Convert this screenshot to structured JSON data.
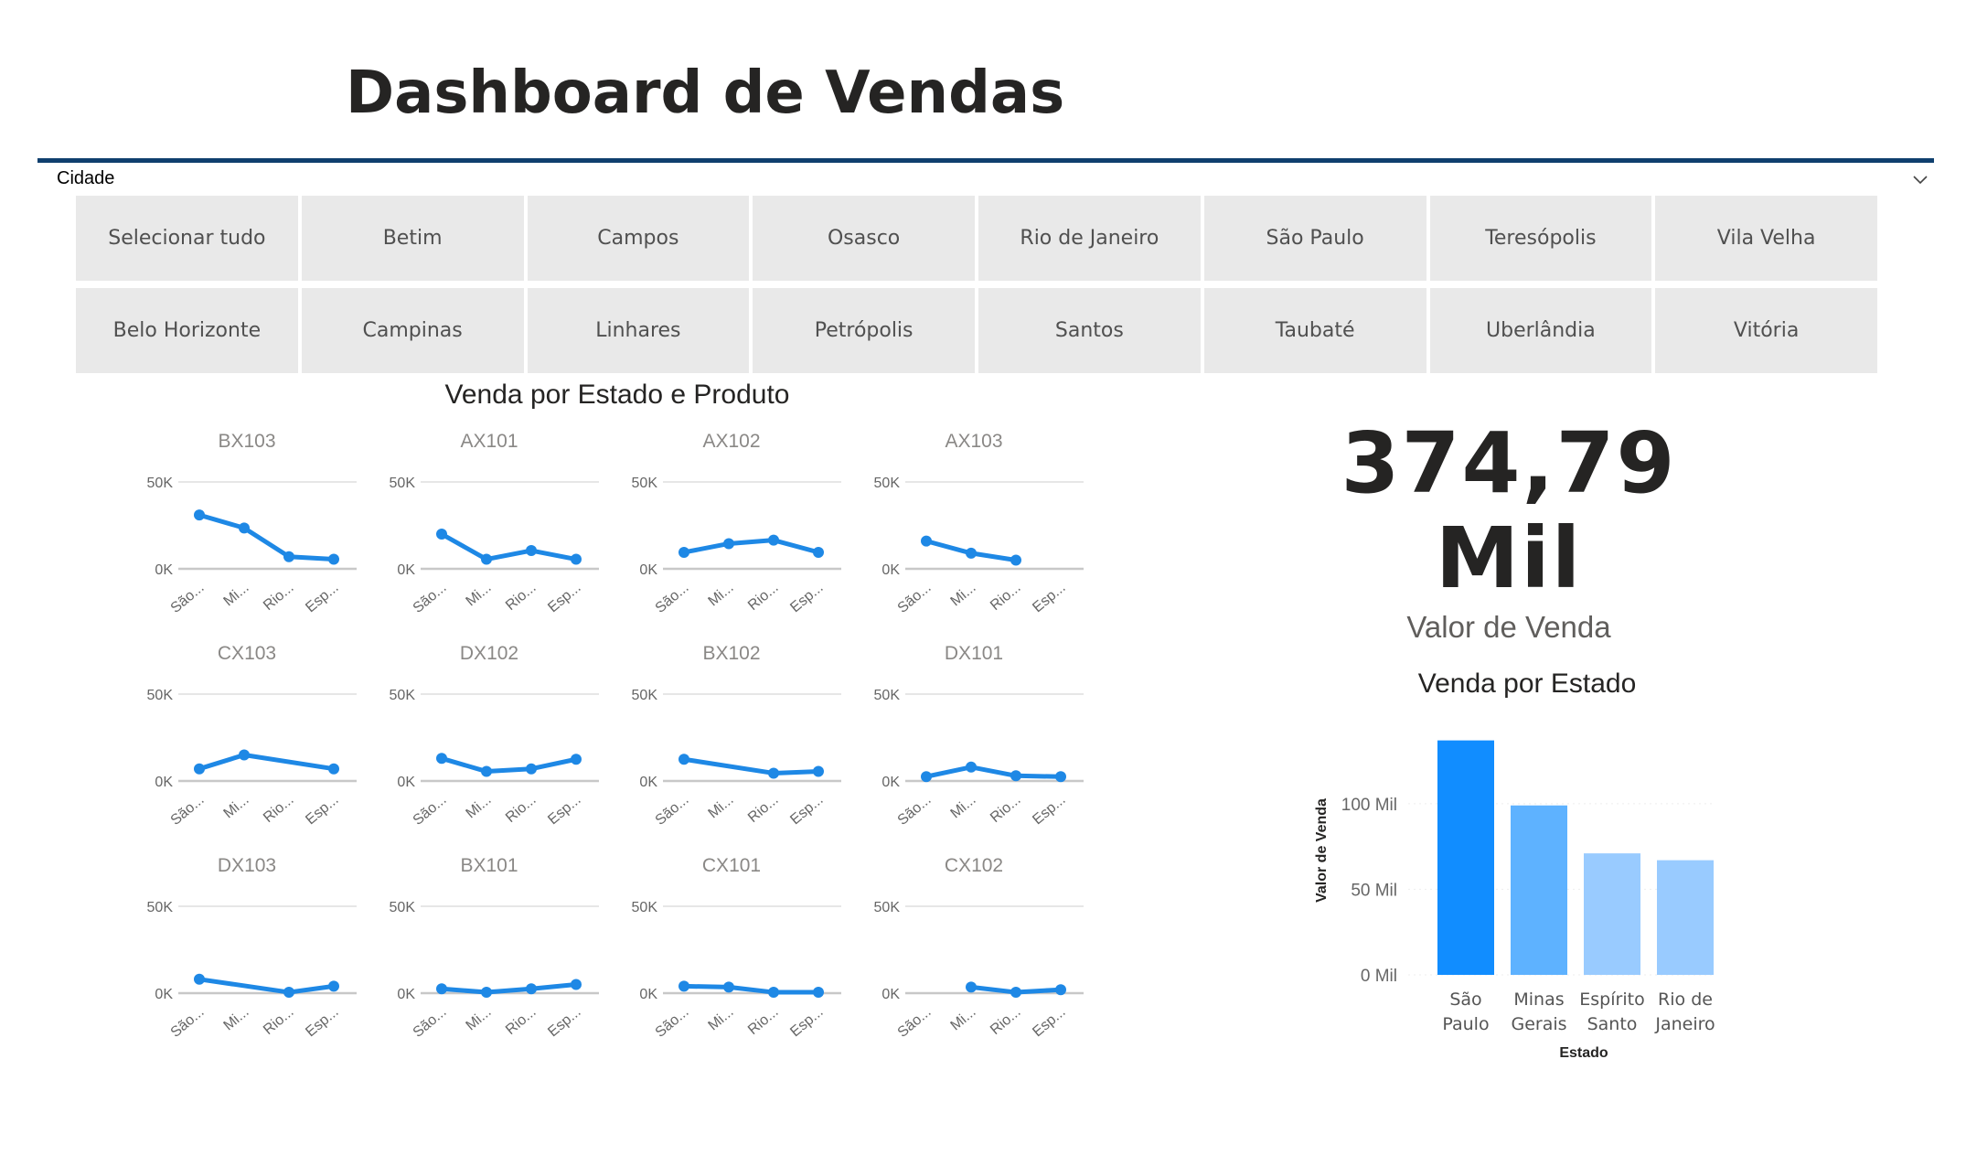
{
  "header": {
    "title": "Dashboard de Vendas"
  },
  "slicer": {
    "label": "Cidade",
    "buttons": [
      "Selecionar tudo",
      "Betim",
      "Campos",
      "Osasco",
      "Rio de Janeiro",
      "São Paulo",
      "Teresópolis",
      "Vila Velha",
      "Belo Horizonte",
      "Campinas",
      "Linhares",
      "Petrópolis",
      "Santos",
      "Taubaté",
      "Uberlândia",
      "Vitória"
    ]
  },
  "small_multiples": {
    "title": "Venda por Estado e Produto"
  },
  "kpi": {
    "value_line1": "374,79",
    "value_line2": "Mil",
    "label": "Valor de Venda"
  },
  "bar_chart_title": "Venda por Estado",
  "colors": {
    "accent": "#118dff",
    "line": "#1e88e5",
    "divider": "#0f3f6e",
    "button_bg": "#e9e9e9"
  },
  "chart_data": [
    {
      "type": "line",
      "title": "Venda por Estado e Produto",
      "categories": [
        "São...",
        "Mi...",
        "Rio...",
        "Esp..."
      ],
      "y_ticks": [
        "0K",
        "50K"
      ],
      "ylim": [
        0,
        50000
      ],
      "series": [
        {
          "name": "BX103",
          "values": [
            31000,
            23500,
            7000,
            5500
          ]
        },
        {
          "name": "AX101",
          "values": [
            20000,
            5500,
            10500,
            5500
          ]
        },
        {
          "name": "AX102",
          "values": [
            9500,
            14500,
            16500,
            9500
          ]
        },
        {
          "name": "AX103",
          "values": [
            16000,
            9000,
            5000,
            null
          ]
        },
        {
          "name": "CX103",
          "values": [
            7000,
            15000,
            null,
            7000
          ]
        },
        {
          "name": "DX102",
          "values": [
            13000,
            5500,
            7000,
            12500
          ]
        },
        {
          "name": "BX102",
          "values": [
            12500,
            null,
            4500,
            5500
          ]
        },
        {
          "name": "DX101",
          "values": [
            2500,
            8000,
            3000,
            2500
          ]
        },
        {
          "name": "DX103",
          "values": [
            8000,
            null,
            500,
            4000
          ]
        },
        {
          "name": "BX101",
          "values": [
            2500,
            500,
            2500,
            5000
          ]
        },
        {
          "name": "CX101",
          "values": [
            4000,
            3500,
            500,
            500
          ]
        },
        {
          "name": "CX102",
          "values": [
            null,
            3500,
            500,
            2000
          ]
        }
      ]
    },
    {
      "type": "bar",
      "title": "Venda por Estado",
      "categories": [
        "São Paulo",
        "Minas Gerais",
        "Espírito Santo",
        "Rio de Janeiro"
      ],
      "values": [
        137000,
        99000,
        71000,
        67000
      ],
      "xlabel": "Estado",
      "ylabel": "Valor de Venda",
      "y_ticks": [
        "0 Mil",
        "50 Mil",
        "100 Mil"
      ],
      "ylim": [
        0,
        140000
      ],
      "colors": [
        "#118dff",
        "#5eb2ff",
        "#99cbff",
        "#99cbff"
      ]
    }
  ]
}
